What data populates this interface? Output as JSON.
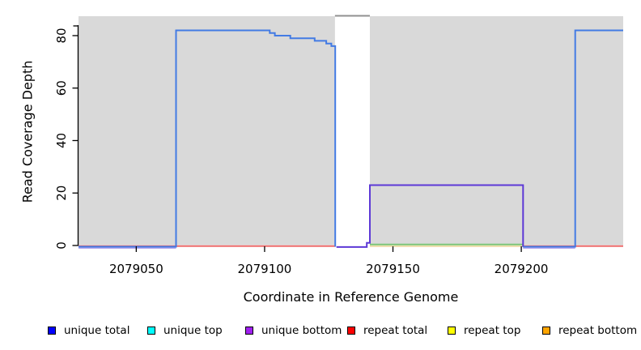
{
  "chart_data": {
    "type": "line",
    "title": "",
    "xlabel": "Coordinate in Reference Genome",
    "ylabel": "Read Coverage Depth",
    "xlim": [
      2079027.5,
      2079239.7
    ],
    "ylim": [
      0,
      87.4
    ],
    "x_ticks": [
      2079050,
      2079100,
      2079150,
      2079200
    ],
    "y_ticks": [
      0,
      20,
      40,
      60,
      80
    ],
    "y_axis_extra_tick_depth": 83.7,
    "grid": false,
    "background_regions": [
      {
        "name": "covered-region-left",
        "x0": 2079027.5,
        "x1": 2079127.4
      },
      {
        "name": "covered-region-right",
        "x0": 2079141.0,
        "x1": 2079239.7
      }
    ],
    "coverage_gap": {
      "x0": 2079127.4,
      "x1": 2079141.0,
      "top_depth": 87.4
    },
    "series": [
      {
        "name": "unique bottom",
        "color": "#5d39d6",
        "points": [
          [
            2079128.0,
            -0.6
          ],
          [
            2079139.8,
            -0.6
          ],
          [
            2079139.8,
            1
          ],
          [
            2079141.0,
            1
          ],
          [
            2079141.0,
            23
          ],
          [
            2079200.7,
            23
          ],
          [
            2079200.7,
            -0.6
          ]
        ]
      },
      {
        "name": "unique total (left block)",
        "color": "#437be4",
        "points": [
          [
            2079027.5,
            -0.45
          ],
          [
            2079065.5,
            -0.45
          ],
          [
            2079065.5,
            82
          ],
          [
            2079102,
            82
          ],
          [
            2079102,
            81
          ],
          [
            2079104,
            81
          ],
          [
            2079104,
            80
          ],
          [
            2079110,
            80
          ],
          [
            2079110,
            79
          ],
          [
            2079119.5,
            79
          ],
          [
            2079119.5,
            78
          ],
          [
            2079124,
            78
          ],
          [
            2079124,
            77
          ],
          [
            2079126,
            77
          ],
          [
            2079126,
            76
          ],
          [
            2079127.5,
            76
          ],
          [
            2079127.5,
            -0.45
          ]
        ]
      },
      {
        "name": "unique total (right block)",
        "color": "#437be4",
        "points": [
          [
            2079200.7,
            -0.45
          ],
          [
            2079221,
            -0.45
          ],
          [
            2079221,
            82
          ],
          [
            2079239.7,
            82
          ]
        ]
      }
    ],
    "baseline_segments": [
      {
        "name": "repeat total at 0 (left)",
        "color": "#ee6d6d",
        "x0": 2079027.5,
        "x1": 2079127.5,
        "dy": 0.8
      },
      {
        "name": "repeat total at 0 (right)",
        "color": "#ee6d6d",
        "x0": 2079141.0,
        "x1": 2079239.7,
        "dy": 0.8
      },
      {
        "name": "repeat top at 0",
        "color": "#ede6b0",
        "x0": 2079141.0,
        "x1": 2079200.7,
        "dy": 0.8
      },
      {
        "name": "unique bottom at 0 under left block",
        "color": "#b3a4ec",
        "x0": 2079027.5,
        "x1": 2079065.5,
        "dy": 3
      },
      {
        "name": "unique bottom at 0 before right block",
        "color": "#b3a4ec",
        "x0": 2079200.7,
        "x1": 2079221.0,
        "dy": 3
      },
      {
        "name": "unique top over repeat top at 0",
        "color": "#7cc87c",
        "x0": 2079141.0,
        "x1": 2079200.7,
        "dy": -1.2
      }
    ]
  },
  "legend": {
    "items": [
      {
        "label": "unique total",
        "color": "#0000ff"
      },
      {
        "label": "unique top",
        "color": "#00ffff"
      },
      {
        "label": "unique bottom",
        "color": "#a020f0"
      },
      {
        "label": "repeat total",
        "color": "#ff0000"
      },
      {
        "label": "repeat top",
        "color": "#ffff00"
      },
      {
        "label": "repeat bottom",
        "color": "#ffa500"
      }
    ]
  },
  "colors": {
    "plot_background": "#d9d9d9",
    "gap_top_line": "#919191",
    "axis": "#000000",
    "page_background": "#ffffff"
  }
}
